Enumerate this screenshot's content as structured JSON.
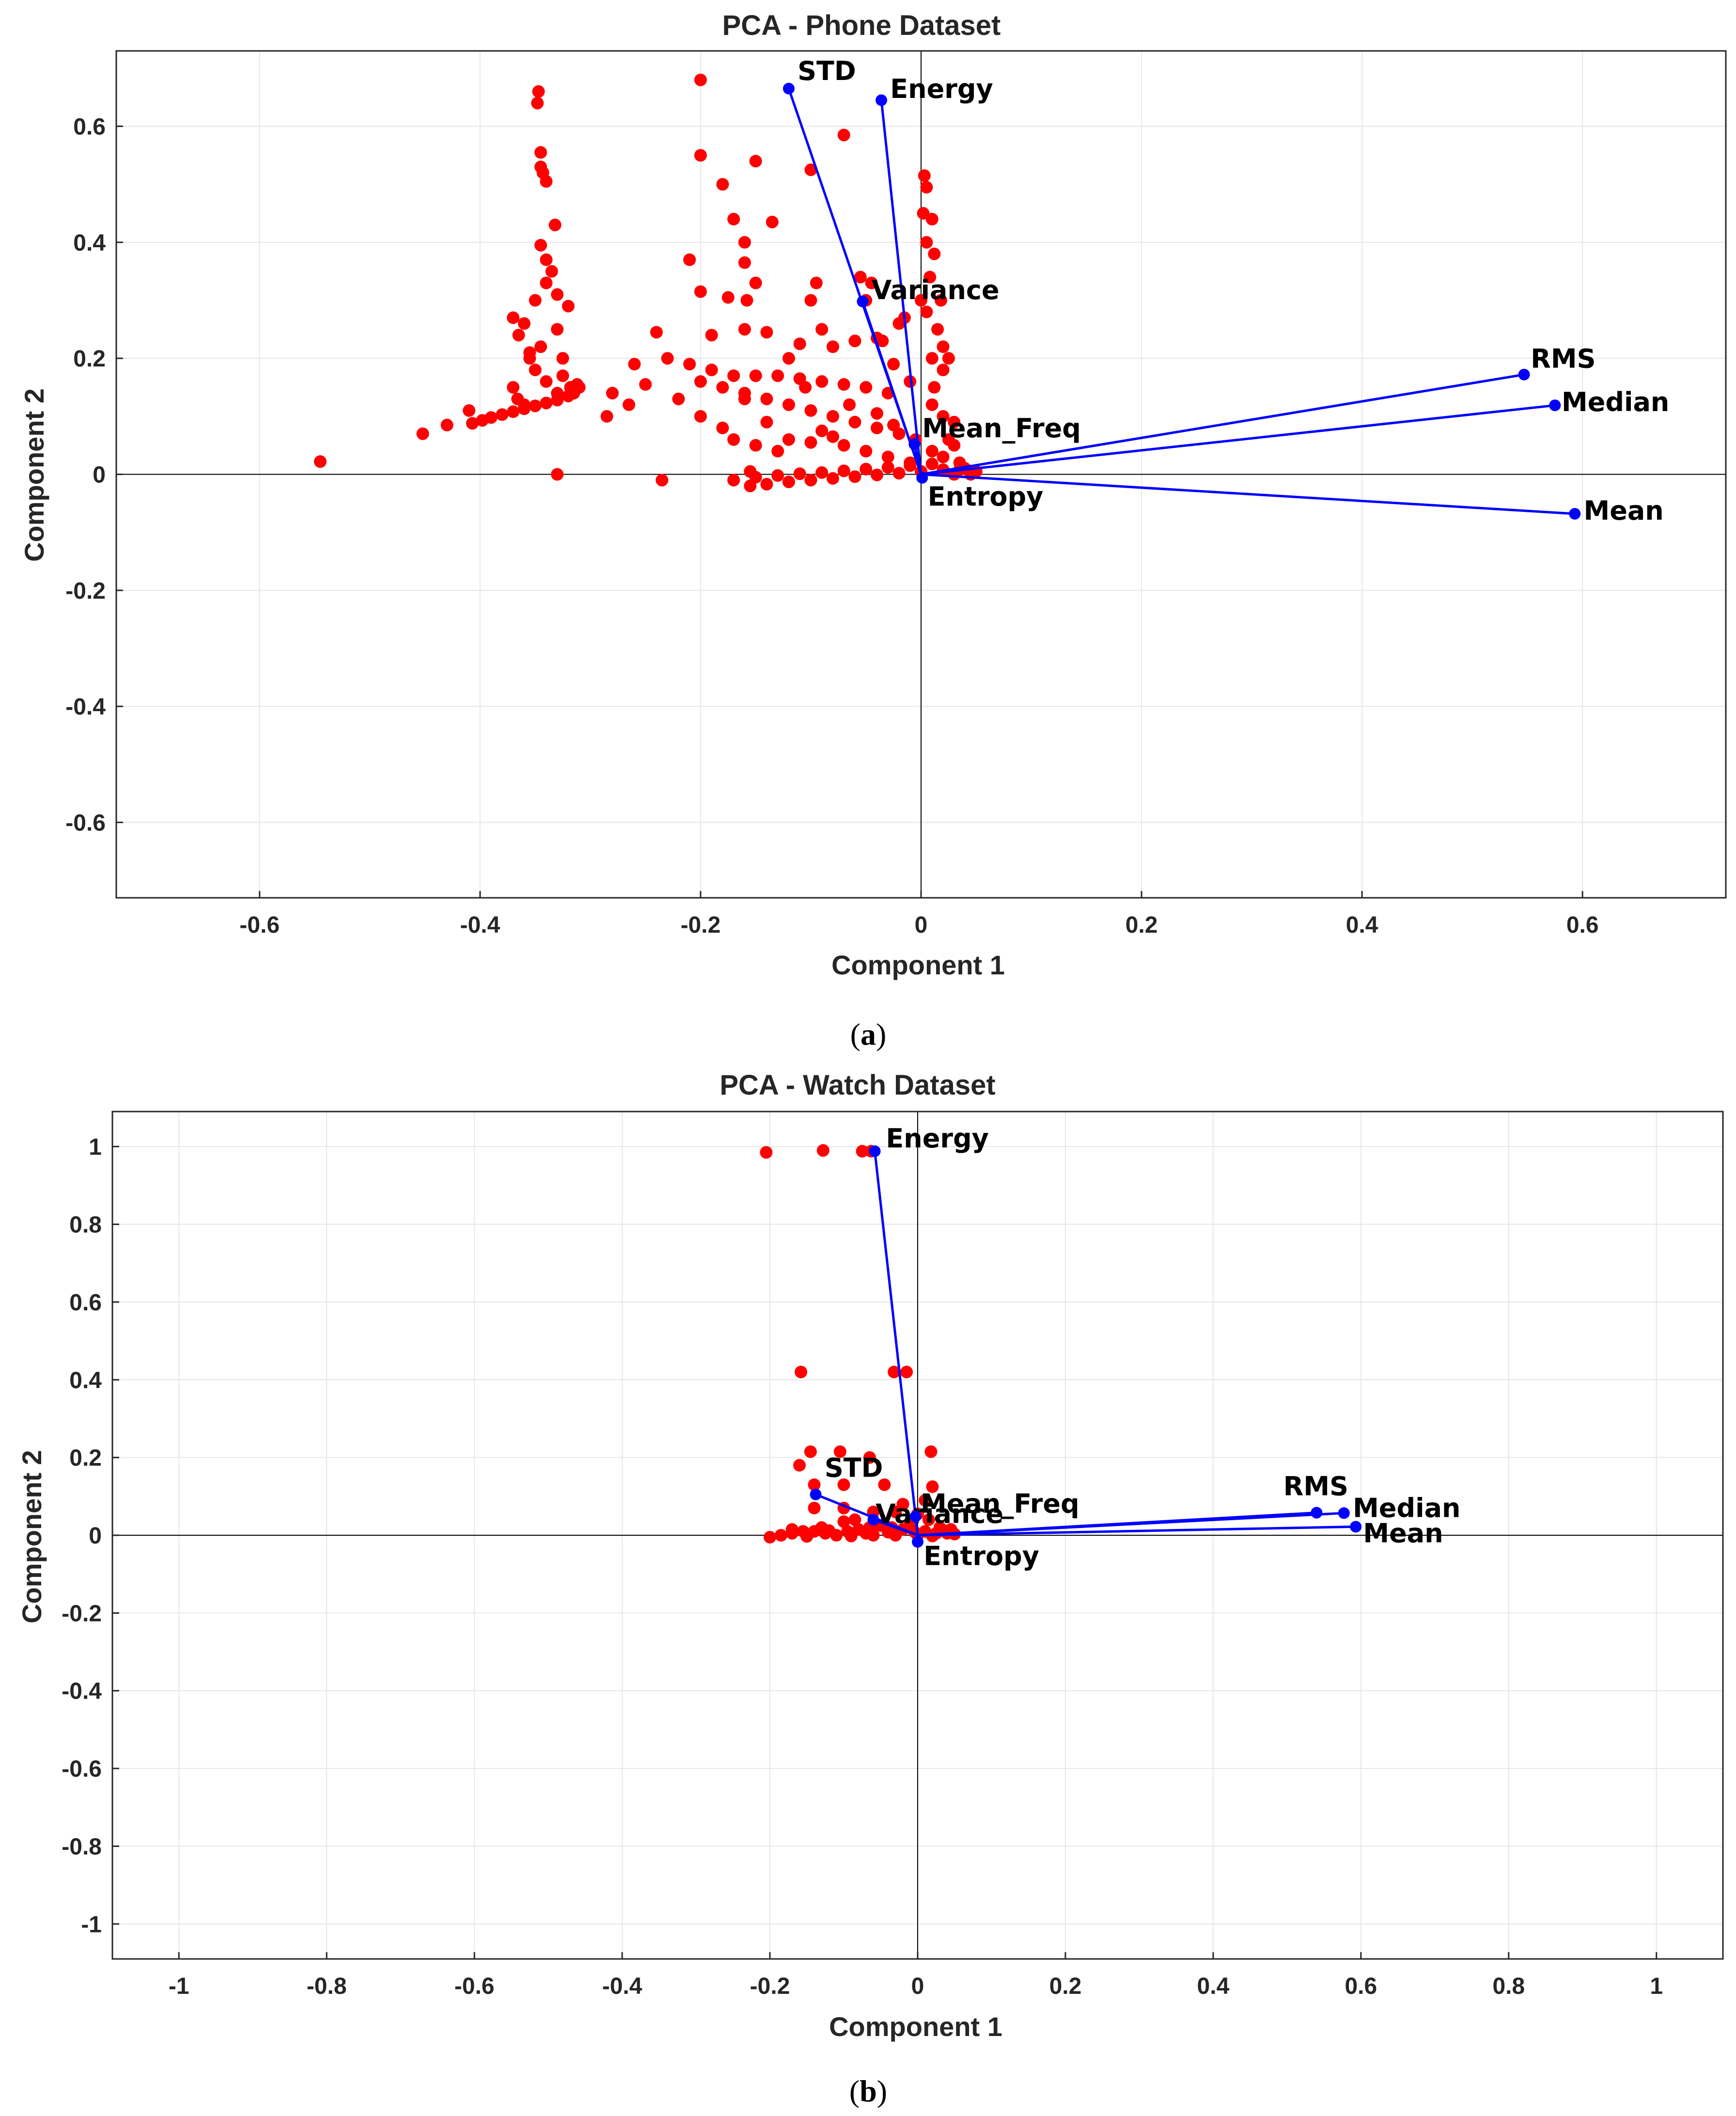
{
  "colors": {
    "points": "#ff0000",
    "vectors": "#0000ff",
    "grid": "#e6e6e6",
    "axis": "#262626",
    "zero": "#000000"
  },
  "chart_data": [
    {
      "type": "scatter",
      "title": "PCA - Phone Dataset",
      "xlabel": "Component 1",
      "ylabel": "Component 2",
      "xlim": [
        -0.73,
        0.73
      ],
      "ylim": [
        -0.73,
        0.73
      ],
      "grid": true,
      "caption_open": "(",
      "caption_letter": "a",
      "caption_close": ")",
      "xticks": [
        -0.6,
        -0.4,
        -0.2,
        0,
        0.2,
        0.4,
        0.6
      ],
      "xtick_labels": [
        "-0.6",
        "-0.4",
        "-0.2",
        "0",
        "0.2",
        "0.4",
        "0.6"
      ],
      "yticks": [
        -0.6,
        -0.4,
        -0.2,
        0,
        0.2,
        0.4,
        0.6
      ],
      "ytick_labels": [
        "-0.6",
        "-0.4",
        "-0.2",
        "0",
        "0.2",
        "0.4",
        "0.6"
      ],
      "vectors": [
        {
          "name": "STD",
          "x": -0.12,
          "y": 0.665,
          "lx": 0.008,
          "ly": 0.015
        },
        {
          "name": "Energy",
          "x": -0.036,
          "y": 0.645,
          "lx": 0.008,
          "ly": 0.004
        },
        {
          "name": "Variance",
          "x": -0.053,
          "y": 0.298,
          "lx": 0.008,
          "ly": 0.004
        },
        {
          "name": "Mean_Freq",
          "x": -0.006,
          "y": 0.052,
          "lx": 0.007,
          "ly": 0.012
        },
        {
          "name": "Entropy",
          "x": 0.001,
          "y": -0.006,
          "lx": 0.005,
          "ly": -0.048
        },
        {
          "name": "RMS",
          "x": 0.547,
          "y": 0.172,
          "lx": 0.006,
          "ly": 0.012
        },
        {
          "name": "Median",
          "x": 0.575,
          "y": 0.119,
          "lx": 0.006,
          "ly": -0.01
        },
        {
          "name": "Mean",
          "x": 0.593,
          "y": -0.068,
          "lx": 0.008,
          "ly": -0.01
        }
      ],
      "points": [
        [
          -0.545,
          0.022
        ],
        [
          -0.452,
          0.07
        ],
        [
          -0.43,
          0.085
        ],
        [
          -0.41,
          0.11
        ],
        [
          -0.407,
          0.088
        ],
        [
          -0.398,
          0.093
        ],
        [
          -0.39,
          0.098
        ],
        [
          -0.38,
          0.103
        ],
        [
          -0.37,
          0.108
        ],
        [
          -0.36,
          0.113
        ],
        [
          -0.35,
          0.118
        ],
        [
          -0.34,
          0.123
        ],
        [
          -0.33,
          0.128
        ],
        [
          -0.32,
          0.135
        ],
        [
          -0.315,
          0.14
        ],
        [
          -0.33,
          0.0
        ],
        [
          -0.36,
          0.12
        ],
        [
          -0.366,
          0.13
        ],
        [
          -0.37,
          0.15
        ],
        [
          -0.34,
          0.16
        ],
        [
          -0.35,
          0.18
        ],
        [
          -0.355,
          0.2
        ],
        [
          -0.345,
          0.22
        ],
        [
          -0.365,
          0.24
        ],
        [
          -0.37,
          0.27
        ],
        [
          -0.35,
          0.3
        ],
        [
          -0.33,
          0.31
        ],
        [
          -0.34,
          0.33
        ],
        [
          -0.335,
          0.35
        ],
        [
          -0.34,
          0.37
        ],
        [
          -0.332,
          0.43
        ],
        [
          -0.345,
          0.395
        ],
        [
          -0.34,
          0.505
        ],
        [
          -0.345,
          0.53
        ],
        [
          -0.345,
          0.555
        ],
        [
          -0.348,
          0.64
        ],
        [
          -0.347,
          0.66
        ],
        [
          -0.343,
          0.52
        ],
        [
          -0.325,
          0.2
        ],
        [
          -0.33,
          0.25
        ],
        [
          -0.32,
          0.29
        ],
        [
          -0.325,
          0.17
        ],
        [
          -0.31,
          0.15
        ],
        [
          -0.36,
          0.26
        ],
        [
          -0.355,
          0.21
        ],
        [
          -0.318,
          0.15
        ],
        [
          -0.312,
          0.155
        ],
        [
          -0.33,
          0.14
        ],
        [
          -0.2,
          0.68
        ],
        [
          -0.2,
          0.55
        ],
        [
          -0.15,
          0.54
        ],
        [
          -0.07,
          0.585
        ],
        [
          -0.21,
          0.37
        ],
        [
          -0.18,
          0.5
        ],
        [
          -0.17,
          0.44
        ],
        [
          -0.135,
          0.435
        ],
        [
          -0.16,
          0.4
        ],
        [
          -0.15,
          0.33
        ],
        [
          -0.16,
          0.365
        ],
        [
          -0.095,
          0.33
        ],
        [
          -0.055,
          0.34
        ],
        [
          -0.1,
          0.525
        ],
        [
          -0.2,
          0.315
        ],
        [
          -0.158,
          0.3
        ],
        [
          -0.175,
          0.305
        ],
        [
          -0.1,
          0.3
        ],
        [
          -0.045,
          0.33
        ],
        [
          -0.05,
          0.3
        ],
        [
          -0.24,
          0.245
        ],
        [
          -0.19,
          0.24
        ],
        [
          -0.16,
          0.25
        ],
        [
          -0.14,
          0.245
        ],
        [
          -0.11,
          0.225
        ],
        [
          -0.08,
          0.22
        ],
        [
          -0.06,
          0.23
        ],
        [
          -0.04,
          0.235
        ],
        [
          -0.02,
          0.26
        ],
        [
          -0.23,
          0.2
        ],
        [
          -0.26,
          0.19
        ],
        [
          -0.21,
          0.19
        ],
        [
          -0.19,
          0.18
        ],
        [
          -0.17,
          0.17
        ],
        [
          -0.15,
          0.17
        ],
        [
          -0.13,
          0.17
        ],
        [
          -0.11,
          0.165
        ],
        [
          -0.09,
          0.16
        ],
        [
          -0.07,
          0.155
        ],
        [
          -0.05,
          0.15
        ],
        [
          -0.03,
          0.14
        ],
        [
          -0.2,
          0.16
        ],
        [
          -0.18,
          0.15
        ],
        [
          -0.16,
          0.14
        ],
        [
          -0.14,
          0.13
        ],
        [
          -0.12,
          0.12
        ],
        [
          -0.1,
          0.11
        ],
        [
          -0.08,
          0.1
        ],
        [
          -0.06,
          0.09
        ],
        [
          -0.04,
          0.08
        ],
        [
          -0.02,
          0.07
        ],
        [
          -0.28,
          0.14
        ],
        [
          -0.265,
          0.12
        ],
        [
          -0.25,
          0.155
        ],
        [
          -0.22,
          0.13
        ],
        [
          -0.2,
          0.1
        ],
        [
          -0.18,
          0.08
        ],
        [
          -0.17,
          0.06
        ],
        [
          -0.15,
          0.05
        ],
        [
          -0.13,
          0.04
        ],
        [
          -0.1,
          0.055
        ],
        [
          -0.08,
          0.065
        ],
        [
          -0.235,
          -0.01
        ],
        [
          -0.285,
          0.1
        ],
        [
          -0.16,
          0.13
        ],
        [
          -0.14,
          0.09
        ],
        [
          -0.12,
          0.06
        ],
        [
          -0.09,
          0.075
        ],
        [
          -0.07,
          0.05
        ],
        [
          -0.05,
          0.04
        ],
        [
          -0.03,
          0.03
        ],
        [
          -0.01,
          0.02
        ],
        [
          0.0,
          0.3
        ],
        [
          0.01,
          0.2
        ],
        [
          0.02,
          0.18
        ],
        [
          0.005,
          0.4
        ],
        [
          0.002,
          0.45
        ],
        [
          0.003,
          0.515
        ],
        [
          0.005,
          0.495
        ],
        [
          0.01,
          0.44
        ],
        [
          0.012,
          0.38
        ],
        [
          0.008,
          0.34
        ],
        [
          0.005,
          0.28
        ],
        [
          0.015,
          0.25
        ],
        [
          0.02,
          0.22
        ],
        [
          0.025,
          0.2
        ],
        [
          0.018,
          0.3
        ],
        [
          0.012,
          0.15
        ],
        [
          0.02,
          0.1
        ],
        [
          0.03,
          0.05
        ],
        [
          0.035,
          0.02
        ],
        [
          0.025,
          0.06
        ],
        [
          0.02,
          0.03
        ],
        [
          0.04,
          0.01
        ],
        [
          0.045,
          0.005
        ],
        [
          0.03,
          0.09
        ],
        [
          0.01,
          0.12
        ],
        [
          -0.01,
          0.16
        ],
        [
          -0.025,
          0.19
        ],
        [
          -0.035,
          0.23
        ],
        [
          -0.015,
          0.27
        ],
        [
          -0.12,
          0.2
        ],
        [
          -0.09,
          0.25
        ],
        [
          -0.105,
          0.15
        ],
        [
          -0.065,
          0.12
        ],
        [
          -0.04,
          0.105
        ],
        [
          -0.025,
          0.085
        ],
        [
          -0.005,
          0.06
        ],
        [
          0.01,
          0.04
        ],
        [
          -0.155,
          -0.02
        ],
        [
          -0.14,
          -0.017
        ],
        [
          -0.12,
          -0.013
        ],
        [
          -0.1,
          -0.01
        ],
        [
          -0.08,
          -0.007
        ],
        [
          -0.06,
          -0.004
        ],
        [
          -0.04,
          -0.001
        ],
        [
          -0.02,
          0.002
        ],
        [
          0.0,
          0.005
        ],
        [
          0.02,
          0.008
        ],
        [
          0.04,
          0.01
        ],
        [
          -0.15,
          -0.005
        ],
        [
          -0.13,
          -0.002
        ],
        [
          -0.11,
          0.001
        ],
        [
          -0.09,
          0.003
        ],
        [
          -0.07,
          0.006
        ],
        [
          -0.05,
          0.009
        ],
        [
          -0.03,
          0.012
        ],
        [
          -0.01,
          0.015
        ],
        [
          0.01,
          0.018
        ],
        [
          -0.155,
          0.005
        ],
        [
          -0.17,
          -0.01
        ],
        [
          0.03,
          0.0
        ],
        [
          0.05,
          0.005
        ],
        [
          0.045,
          0.0
        ],
        [
          0.035,
          0.008
        ]
      ]
    },
    {
      "type": "scatter",
      "title": "PCA - Watch Dataset",
      "xlabel": "Component 1",
      "ylabel": "Component 2",
      "xlim": [
        -1.09,
        1.09
      ],
      "ylim": [
        -1.09,
        1.09
      ],
      "grid": true,
      "caption_open": "(",
      "caption_letter": "b",
      "caption_close": ")",
      "xticks": [
        -1,
        -0.8,
        -0.6,
        -0.4,
        -0.2,
        0,
        0.2,
        0.4,
        0.6,
        0.8,
        1
      ],
      "xtick_labels": [
        "-1",
        "-0.8",
        "-0.6",
        "-0.4",
        "-0.2",
        "0",
        "0.2",
        "0.4",
        "0.6",
        "0.8",
        "1"
      ],
      "yticks": [
        -1,
        -0.8,
        -0.6,
        -0.4,
        -0.2,
        0,
        0.2,
        0.4,
        0.6,
        0.8,
        1
      ],
      "ytick_labels": [
        "-1",
        "-0.8",
        "-0.6",
        "-0.4",
        "-0.2",
        "0",
        "0.2",
        "0.4",
        "0.6",
        "0.8",
        "1"
      ],
      "vectors": [
        {
          "name": "Energy",
          "x": -0.058,
          "y": 0.988,
          "lx": 0.015,
          "ly": 0.01
        },
        {
          "name": "STD",
          "x": -0.138,
          "y": 0.105,
          "lx": 0.012,
          "ly": 0.045
        },
        {
          "name": "Variance",
          "x": -0.06,
          "y": 0.04,
          "lx": 0.003,
          "ly": -0.008
        },
        {
          "name": "Mean_Freq",
          "x": -0.003,
          "y": 0.048,
          "lx": 0.007,
          "ly": 0.01
        },
        {
          "name": "Entropy",
          "x": 0.0,
          "y": -0.017,
          "lx": 0.008,
          "ly": -0.06
        },
        {
          "name": "RMS",
          "x": 0.54,
          "y": 0.058,
          "lx": -0.045,
          "ly": 0.045
        },
        {
          "name": "Median",
          "x": 0.577,
          "y": 0.057,
          "lx": 0.012,
          "ly": -0.01
        },
        {
          "name": "Mean",
          "x": 0.593,
          "y": 0.022,
          "lx": 0.01,
          "ly": -0.04
        }
      ],
      "points": [
        [
          -0.205,
          0.985
        ],
        [
          -0.128,
          0.99
        ],
        [
          -0.075,
          0.988
        ],
        [
          -0.063,
          0.988
        ],
        [
          -0.158,
          0.42
        ],
        [
          -0.032,
          0.42
        ],
        [
          -0.015,
          0.42
        ],
        [
          -0.145,
          0.215
        ],
        [
          -0.105,
          0.215
        ],
        [
          -0.065,
          0.2
        ],
        [
          0.018,
          0.215
        ],
        [
          -0.16,
          0.18
        ],
        [
          -0.14,
          0.13
        ],
        [
          -0.1,
          0.13
        ],
        [
          -0.045,
          0.13
        ],
        [
          0.02,
          0.125
        ],
        [
          -0.14,
          0.07
        ],
        [
          -0.1,
          0.07
        ],
        [
          -0.02,
          0.08
        ],
        [
          0.01,
          0.09
        ],
        [
          -0.2,
          -0.005
        ],
        [
          -0.185,
          0.0
        ],
        [
          -0.17,
          0.005
        ],
        [
          -0.155,
          0.01
        ],
        [
          -0.14,
          0.01
        ],
        [
          -0.125,
          0.005
        ],
        [
          -0.11,
          0.0
        ],
        [
          -0.095,
          0.01
        ],
        [
          -0.08,
          0.015
        ],
        [
          -0.065,
          0.02
        ],
        [
          -0.05,
          0.025
        ],
        [
          -0.035,
          0.02
        ],
        [
          -0.02,
          0.015
        ],
        [
          -0.005,
          0.01
        ],
        [
          0.01,
          0.01
        ],
        [
          0.025,
          0.005
        ],
        [
          0.04,
          0.005
        ],
        [
          0.05,
          0.003
        ],
        [
          -0.15,
          -0.003
        ],
        [
          -0.12,
          0.012
        ],
        [
          -0.09,
          -0.002
        ],
        [
          -0.07,
          0.005
        ],
        [
          -0.04,
          0.008
        ],
        [
          -0.01,
          0.03
        ],
        [
          0.015,
          0.04
        ],
        [
          0.03,
          0.02
        ],
        [
          -0.06,
          0.06
        ],
        [
          -0.03,
          0.06
        ],
        [
          0.0,
          0.055
        ],
        [
          -0.085,
          0.04
        ],
        [
          -0.06,
          0.0
        ],
        [
          -0.03,
          0.0
        ],
        [
          0.0,
          0.0
        ],
        [
          0.02,
          -0.002
        ],
        [
          -0.13,
          0.02
        ],
        [
          -0.1,
          0.035
        ],
        [
          -0.17,
          0.015
        ],
        [
          0.035,
          0.012
        ],
        [
          0.045,
          0.015
        ]
      ]
    }
  ]
}
